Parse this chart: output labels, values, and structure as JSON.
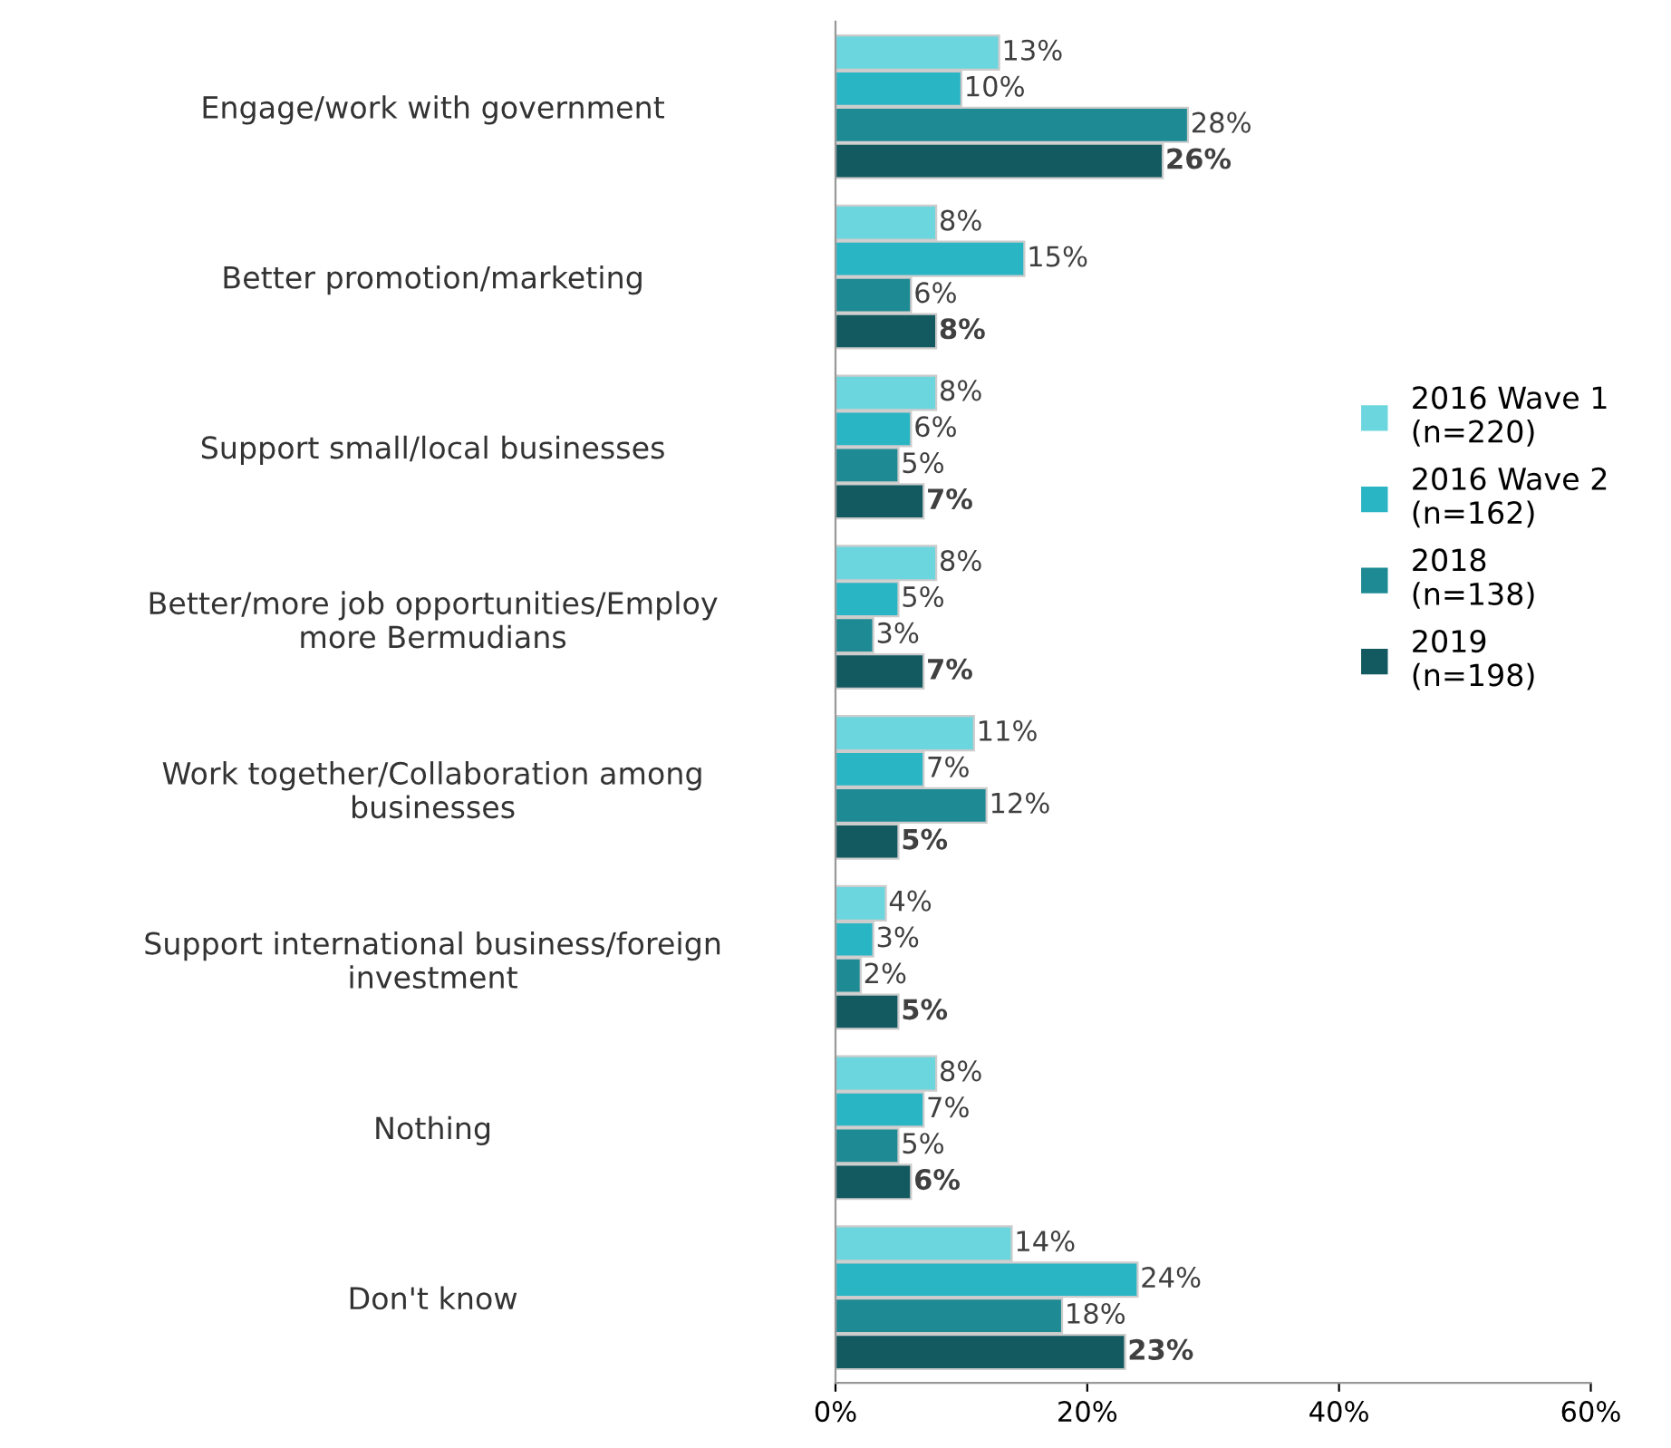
{
  "chart_data": {
    "type": "bar",
    "orientation": "horizontal",
    "categories": [
      "Engage/work with government",
      "Better promotion/marketing",
      "Support small/local businesses",
      "Better/more job opportunities/Employ more Bermudians",
      "Work together/Collaboration among businesses",
      "Support international business/foreign investment",
      "Nothing",
      "Don't know"
    ],
    "series": [
      {
        "name": "2016 Wave 1\n(n=220)",
        "color": "#6cd6df",
        "values": [
          13,
          8,
          8,
          8,
          11,
          4,
          8,
          14
        ],
        "value_labels": [
          "13%",
          "8%",
          "8%",
          "8%",
          "11%",
          "4%",
          "8%",
          "14%"
        ]
      },
      {
        "name": "2016 Wave 2\n(n=162)",
        "color": "#2ab5c4",
        "values": [
          10,
          15,
          6,
          5,
          7,
          3,
          7,
          24
        ],
        "value_labels": [
          "10%",
          "15%",
          "6%",
          "5%",
          "7%",
          "3%",
          "7%",
          "24%"
        ]
      },
      {
        "name": "2018\n(n=138)",
        "color": "#1e8a93",
        "values": [
          28,
          6,
          5,
          3,
          12,
          2,
          5,
          18
        ],
        "value_labels": [
          "28%",
          "6%",
          "5%",
          "3%",
          "12%",
          "2%",
          "5%",
          "18%"
        ]
      },
      {
        "name": "2019\n(n=198)",
        "color": "#135a60",
        "values": [
          26,
          8,
          7,
          7,
          5,
          5,
          6,
          23
        ],
        "value_labels": [
          "26%",
          "8%",
          "7%",
          "7%",
          "5%",
          "5%",
          "6%",
          "23%"
        ]
      }
    ],
    "xlim": [
      0,
      60
    ],
    "xticks": [
      {
        "value": 0,
        "label": "0%"
      },
      {
        "value": 20,
        "label": "20%"
      },
      {
        "value": 40,
        "label": "40%"
      },
      {
        "value": 60,
        "label": "60%"
      }
    ],
    "legend": "right",
    "grid": false
  }
}
